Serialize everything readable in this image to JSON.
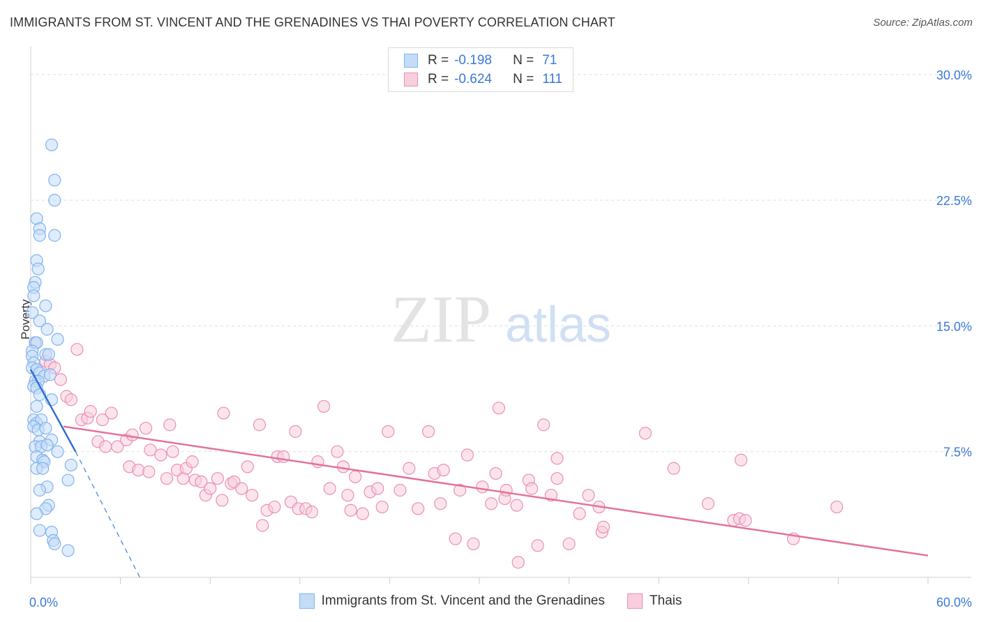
{
  "header": {
    "title": "IMMIGRANTS FROM ST. VINCENT AND THE GRENADINES VS THAI POVERTY CORRELATION CHART",
    "source": "Source: ZipAtlas.com"
  },
  "watermark": {
    "zip": "ZIP",
    "atlas": "atlas"
  },
  "legend": {
    "rows": [
      {
        "r_label": "R =",
        "r_value": "-0.198",
        "n_label": "N =",
        "n_value": "71"
      },
      {
        "r_label": "R =",
        "r_value": "-0.624",
        "n_label": "N =",
        "n_value": "111"
      }
    ]
  },
  "chart_data": {
    "type": "scatter",
    "title": "IMMIGRANTS FROM ST. VINCENT AND THE GRENADINES VS THAI POVERTY CORRELATION CHART",
    "xlabel": "",
    "ylabel": "Poverty",
    "xlim": [
      0,
      60
    ],
    "ylim": [
      0,
      31.2
    ],
    "x_tick_labels": [
      "0.0%",
      "60.0%"
    ],
    "y_ticks": [
      7.5,
      15.0,
      22.5,
      30.0
    ],
    "y_tick_labels": [
      "7.5%",
      "15.0%",
      "22.5%",
      "30.0%"
    ],
    "grid": true,
    "legend_position": "top-center",
    "series": [
      {
        "name": "Immigrants from St. Vincent and the Grenadines",
        "color": "#7fb2ef",
        "fill": "#c5dcf7",
        "R": -0.198,
        "N": 71,
        "trend": {
          "solid": [
            [
              0.0,
              12.4
            ],
            [
              3.0,
              7.5
            ]
          ],
          "dashed": [
            [
              3.0,
              7.5
            ],
            [
              7.3,
              0.0
            ]
          ]
        },
        "points": [
          [
            1.4,
            25.8
          ],
          [
            1.6,
            23.7
          ],
          [
            1.6,
            22.5
          ],
          [
            0.4,
            21.4
          ],
          [
            0.6,
            20.8
          ],
          [
            0.6,
            20.4
          ],
          [
            1.6,
            20.4
          ],
          [
            0.4,
            18.9
          ],
          [
            0.5,
            18.4
          ],
          [
            0.3,
            17.6
          ],
          [
            0.2,
            17.3
          ],
          [
            0.2,
            16.8
          ],
          [
            1.0,
            16.2
          ],
          [
            0.1,
            15.8
          ],
          [
            0.6,
            15.3
          ],
          [
            1.1,
            14.8
          ],
          [
            1.8,
            14.2
          ],
          [
            0.3,
            14.0
          ],
          [
            0.4,
            14.0
          ],
          [
            0.1,
            13.5
          ],
          [
            0.1,
            13.2
          ],
          [
            1.0,
            13.3
          ],
          [
            1.2,
            13.3
          ],
          [
            0.2,
            12.8
          ],
          [
            0.1,
            12.5
          ],
          [
            0.4,
            12.4
          ],
          [
            0.6,
            12.2
          ],
          [
            0.9,
            12.0
          ],
          [
            1.3,
            12.1
          ],
          [
            0.3,
            11.7
          ],
          [
            0.5,
            11.7
          ],
          [
            0.2,
            11.4
          ],
          [
            0.4,
            11.3
          ],
          [
            0.6,
            10.9
          ],
          [
            1.4,
            10.6
          ],
          [
            0.4,
            10.2
          ],
          [
            0.2,
            9.4
          ],
          [
            0.4,
            9.2
          ],
          [
            0.7,
            9.4
          ],
          [
            0.2,
            9.0
          ],
          [
            0.5,
            8.8
          ],
          [
            1.0,
            8.9
          ],
          [
            0.6,
            8.1
          ],
          [
            1.4,
            8.2
          ],
          [
            0.3,
            7.8
          ],
          [
            0.7,
            7.8
          ],
          [
            1.1,
            7.9
          ],
          [
            1.8,
            7.5
          ],
          [
            0.4,
            7.2
          ],
          [
            0.8,
            7.0
          ],
          [
            0.9,
            6.9
          ],
          [
            0.4,
            6.5
          ],
          [
            0.8,
            6.5
          ],
          [
            2.7,
            6.7
          ],
          [
            2.5,
            5.8
          ],
          [
            1.1,
            5.4
          ],
          [
            0.6,
            5.2
          ],
          [
            1.2,
            4.3
          ],
          [
            1.0,
            4.1
          ],
          [
            0.4,
            3.8
          ],
          [
            0.6,
            2.8
          ],
          [
            1.4,
            2.7
          ],
          [
            1.5,
            2.2
          ],
          [
            1.6,
            2.0
          ],
          [
            2.5,
            1.6
          ]
        ]
      },
      {
        "name": "Thais",
        "color": "#eb8fb0",
        "fill": "#f8cede",
        "R": -0.624,
        "N": 111,
        "trend": {
          "solid": [
            [
              2.2,
              9.0
            ],
            [
              60.0,
              1.3
            ]
          ]
        },
        "points": [
          [
            0.3,
            14.0
          ],
          [
            1.0,
            12.9
          ],
          [
            1.3,
            12.7
          ],
          [
            1.6,
            12.5
          ],
          [
            3.1,
            13.6
          ],
          [
            2.0,
            11.8
          ],
          [
            2.4,
            10.8
          ],
          [
            2.7,
            10.6
          ],
          [
            3.4,
            9.4
          ],
          [
            3.8,
            9.5
          ],
          [
            4.0,
            9.9
          ],
          [
            4.8,
            9.4
          ],
          [
            5.4,
            9.8
          ],
          [
            4.5,
            8.1
          ],
          [
            5.0,
            7.8
          ],
          [
            5.8,
            7.8
          ],
          [
            6.4,
            8.2
          ],
          [
            6.8,
            8.5
          ],
          [
            6.6,
            6.6
          ],
          [
            7.2,
            6.4
          ],
          [
            7.7,
            8.9
          ],
          [
            8.0,
            7.6
          ],
          [
            7.9,
            6.3
          ],
          [
            8.7,
            7.3
          ],
          [
            9.1,
            5.9
          ],
          [
            9.5,
            7.5
          ],
          [
            9.3,
            9.1
          ],
          [
            9.8,
            6.4
          ],
          [
            10.2,
            5.9
          ],
          [
            10.4,
            6.5
          ],
          [
            10.8,
            6.9
          ],
          [
            11.0,
            5.8
          ],
          [
            11.4,
            5.7
          ],
          [
            11.7,
            4.9
          ],
          [
            12.0,
            5.3
          ],
          [
            12.5,
            5.9
          ],
          [
            12.8,
            4.6
          ],
          [
            12.9,
            9.8
          ],
          [
            13.4,
            5.6
          ],
          [
            13.6,
            5.7
          ],
          [
            14.1,
            5.3
          ],
          [
            14.5,
            6.6
          ],
          [
            14.8,
            4.9
          ],
          [
            15.3,
            9.1
          ],
          [
            15.5,
            3.1
          ],
          [
            15.8,
            4.0
          ],
          [
            16.3,
            4.2
          ],
          [
            16.5,
            7.2
          ],
          [
            16.9,
            7.2
          ],
          [
            17.4,
            4.5
          ],
          [
            17.7,
            8.7
          ],
          [
            17.9,
            4.1
          ],
          [
            18.4,
            4.1
          ],
          [
            18.8,
            3.9
          ],
          [
            19.2,
            6.9
          ],
          [
            19.6,
            10.2
          ],
          [
            20.0,
            5.3
          ],
          [
            20.5,
            7.5
          ],
          [
            20.9,
            6.6
          ],
          [
            21.4,
            4.0
          ],
          [
            21.7,
            6.0
          ],
          [
            21.2,
            4.9
          ],
          [
            22.2,
            3.8
          ],
          [
            22.7,
            5.1
          ],
          [
            23.2,
            5.3
          ],
          [
            23.5,
            4.2
          ],
          [
            23.9,
            8.7
          ],
          [
            24.7,
            5.2
          ],
          [
            25.3,
            6.5
          ],
          [
            25.9,
            4.1
          ],
          [
            26.6,
            8.7
          ],
          [
            27.0,
            6.2
          ],
          [
            27.4,
            4.4
          ],
          [
            27.6,
            6.4
          ],
          [
            28.4,
            2.3
          ],
          [
            28.7,
            5.2
          ],
          [
            29.2,
            7.3
          ],
          [
            29.6,
            2.0
          ],
          [
            30.2,
            5.4
          ],
          [
            30.8,
            4.4
          ],
          [
            31.1,
            6.2
          ],
          [
            31.3,
            10.1
          ],
          [
            31.7,
            4.7
          ],
          [
            31.8,
            5.2
          ],
          [
            32.5,
            4.3
          ],
          [
            32.6,
            0.9
          ],
          [
            33.3,
            5.8
          ],
          [
            33.5,
            5.3
          ],
          [
            33.9,
            1.9
          ],
          [
            34.3,
            9.1
          ],
          [
            34.8,
            4.9
          ],
          [
            35.2,
            7.1
          ],
          [
            35.2,
            5.9
          ],
          [
            36.0,
            2.0
          ],
          [
            36.7,
            3.8
          ],
          [
            37.3,
            4.9
          ],
          [
            38.0,
            4.2
          ],
          [
            38.2,
            2.7
          ],
          [
            38.3,
            3.0
          ],
          [
            41.1,
            8.6
          ],
          [
            43.0,
            6.5
          ],
          [
            45.3,
            4.4
          ],
          [
            47.0,
            3.4
          ],
          [
            47.4,
            3.5
          ],
          [
            47.5,
            7.0
          ],
          [
            47.8,
            3.4
          ],
          [
            51.0,
            2.3
          ],
          [
            53.9,
            4.2
          ]
        ]
      }
    ]
  }
}
